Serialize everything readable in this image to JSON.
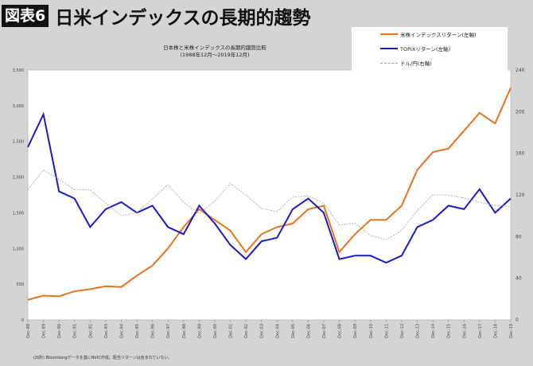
{
  "header": {
    "badge": "図表6",
    "title": "日米インデックスの長期的趨勢"
  },
  "footnote": "(出所) Bloombergデータを基にNVIC作成。配当リターンは含まれていない。",
  "chart_data": {
    "type": "line",
    "title": "日本株と米株インデックスの長期的趨勢比較",
    "subtitle": "(1988年12月～2019年12月)",
    "categories": [
      "Dec-88",
      "Dec-89",
      "Dec-90",
      "Dec-91",
      "Dec-92",
      "Dec-93",
      "Dec-94",
      "Dec-95",
      "Dec-96",
      "Dec-97",
      "Dec-98",
      "Dec-99",
      "Dec-00",
      "Dec-01",
      "Dec-02",
      "Dec-03",
      "Dec-04",
      "Dec-05",
      "Dec-06",
      "Dec-07",
      "Dec-08",
      "Dec-09",
      "Dec-10",
      "Dec-11",
      "Dec-12",
      "Dec-13",
      "Dec-14",
      "Dec-15",
      "Dec-16",
      "Dec-17",
      "Dec-18",
      "Dec-19"
    ],
    "y_left": {
      "range": [
        0,
        3500
      ],
      "ticks": [
        "0",
        "500",
        "1,000",
        "1,500",
        "2,000",
        "2,500",
        "3,000",
        "3,500"
      ]
    },
    "y_right": {
      "range": [
        0,
        240
      ],
      "ticks": [
        "0",
        "40",
        "80",
        "120",
        "160",
        "200",
        "240"
      ]
    },
    "legend_position": "top-right",
    "grid": false,
    "series": [
      {
        "name": "米株インデックスリターン(左軸)",
        "axis": "left",
        "color": "#e8731c",
        "style": "solid",
        "values": [
          280,
          340,
          330,
          400,
          430,
          470,
          460,
          620,
          760,
          1000,
          1300,
          1550,
          1400,
          1250,
          950,
          1200,
          1300,
          1350,
          1550,
          1600,
          950,
          1200,
          1400,
          1400,
          1600,
          2100,
          2350,
          2400,
          2650,
          2900,
          2750,
          3250
        ]
      },
      {
        "name": "TOPIXリターン(左軸)",
        "axis": "left",
        "color": "#1a1acc",
        "style": "solid",
        "values": [
          2420,
          2880,
          1800,
          1700,
          1300,
          1550,
          1650,
          1500,
          1600,
          1300,
          1200,
          1600,
          1350,
          1050,
          850,
          1100,
          1150,
          1550,
          1700,
          1500,
          850,
          900,
          900,
          800,
          900,
          1300,
          1400,
          1600,
          1550,
          1830,
          1500,
          1700
        ]
      },
      {
        "name": "ドル/円(右軸)",
        "axis": "right",
        "color": "#a0a0a0",
        "style": "dashed",
        "values": [
          125,
          144,
          135,
          125,
          125,
          112,
          100,
          103,
          116,
          130,
          113,
          102,
          114,
          131,
          120,
          107,
          104,
          118,
          119,
          112,
          91,
          93,
          81,
          77,
          86,
          105,
          120,
          120,
          117,
          113,
          110,
          109
        ]
      }
    ]
  }
}
